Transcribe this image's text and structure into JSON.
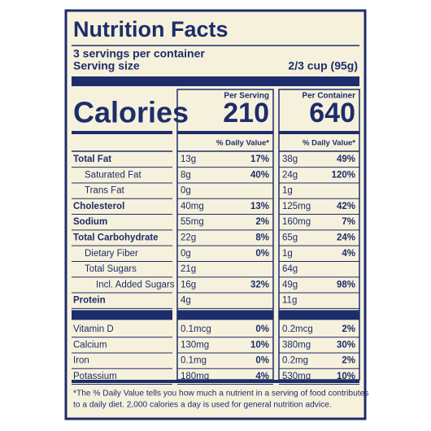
{
  "title": "Nutrition Facts",
  "servings": "3 servings per container",
  "serving_size_label": "Serving size",
  "serving_size": "2/3 cup (95g)",
  "calories_label": "Calories",
  "columns": [
    {
      "heading": "Per Serving",
      "calories": "210",
      "dv_heading": "% Daily Value*"
    },
    {
      "heading": "Per Container",
      "calories": "640",
      "dv_heading": "% Daily Value*"
    }
  ],
  "nutrients": [
    {
      "name": "Total Fat",
      "cells": [
        [
          "13g",
          "17%"
        ],
        [
          "38g",
          "49%"
        ]
      ],
      "sub": [
        {
          "name": "Saturated Fat",
          "cells": [
            [
              "8g",
              "40%"
            ],
            [
              "24g",
              "120%"
            ]
          ]
        },
        {
          "name": "Trans Fat",
          "cells": [
            [
              "0g"
            ],
            [
              "1g"
            ]
          ]
        }
      ]
    },
    {
      "name": "Cholesterol",
      "cells": [
        [
          "40mg",
          "13%"
        ],
        [
          "125mg",
          "42%"
        ]
      ]
    },
    {
      "name": "Sodium",
      "cells": [
        [
          "55mg",
          "2%"
        ],
        [
          "160mg",
          "7%"
        ]
      ]
    },
    {
      "name": "Total Carbohydrate",
      "cells": [
        [
          "22g",
          "8%"
        ],
        [
          "65g",
          "24%"
        ]
      ],
      "sub": [
        {
          "name": "Dietary Fiber",
          "cells": [
            [
              "0g",
              "0%"
            ],
            [
              "1g",
              "4%"
            ]
          ]
        },
        {
          "name": "Total Sugars",
          "cells": [
            [
              "21g"
            ],
            [
              "64g"
            ]
          ],
          "sub": [
            {
              "name": "Incl. Added Sugars",
              "cells": [
                [
                  "16g",
                  "32%"
                ],
                [
                  "49g",
                  "98%"
                ]
              ]
            }
          ]
        }
      ]
    },
    {
      "name": "Protein",
      "cells": [
        [
          "4g"
        ],
        [
          "11g"
        ]
      ]
    }
  ],
  "minerals": [
    {
      "name": "Vitamin D",
      "cells": [
        [
          "0.1mcg",
          "0%"
        ],
        [
          "0.2mcg",
          "2%"
        ]
      ]
    },
    {
      "name": "Calcium",
      "cells": [
        [
          "130mg",
          "10%"
        ],
        [
          "380mg",
          "30%"
        ]
      ]
    },
    {
      "name": "Iron",
      "cells": [
        [
          "0.1mg",
          "0%"
        ],
        [
          "0.2mg",
          "2%"
        ]
      ]
    },
    {
      "name": "Potassium",
      "cells": [
        [
          "180mg",
          "4%"
        ],
        [
          "530mg",
          "10%"
        ]
      ]
    }
  ],
  "footnote": [
    "*The % Daily Value tells you how much a nutrient in a serving of food contributes",
    "to a daily diet. 2,000 calories a day is used for general nutrition advice."
  ]
}
